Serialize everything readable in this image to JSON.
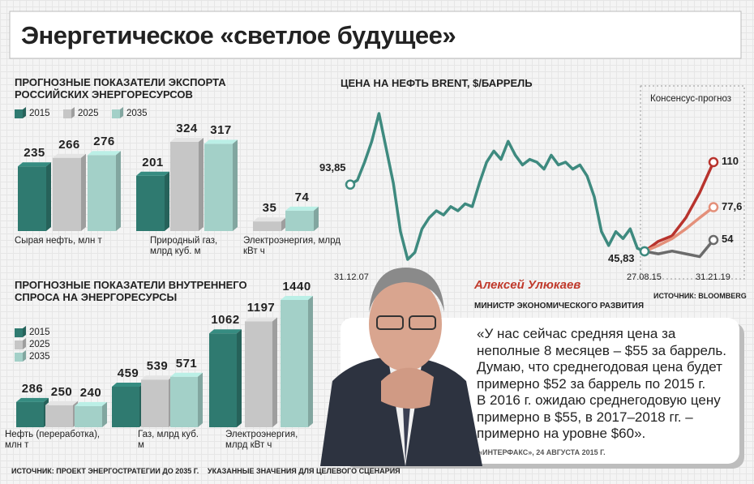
{
  "title": "Энергетическое «светлое будущее»",
  "chart_data": [
    {
      "type": "bar",
      "title": "ПРОГНОЗНЫЕ ПОКАЗАТЕЛИ ЭКСПОРТА РОССИЙСКИХ ЭНЕРГОРЕСУРСОВ",
      "categories": [
        "Сырая нефть, млн т",
        "Природный газ, млрд куб. м",
        "Электроэнергия, млрд кВт ч"
      ],
      "series": [
        {
          "name": "2015",
          "color": "#2f7a70",
          "values": [
            235,
            201,
            null
          ]
        },
        {
          "name": "2025",
          "color": "#c6c6c6",
          "values": [
            266,
            324,
            35
          ]
        },
        {
          "name": "2035",
          "color": "#a3d0c8",
          "values": [
            276,
            317,
            74
          ]
        }
      ],
      "legend": "horizontal"
    },
    {
      "type": "bar",
      "title": "ПРОГНОЗНЫЕ ПОКАЗАТЕЛИ ВНУТРЕННЕГО СПРОСА НА ЭНЕРГОРЕСУРСЫ",
      "categories": [
        "Нефть (переработка), млн т",
        "Газ, млрд куб. м",
        "Электроэнергия, млрд кВт ч"
      ],
      "series": [
        {
          "name": "2015",
          "color": "#2f7a70",
          "values": [
            286,
            459,
            1062
          ]
        },
        {
          "name": "2025",
          "color": "#c6c6c6",
          "values": [
            250,
            539,
            1197
          ]
        },
        {
          "name": "2035",
          "color": "#a3d0c8",
          "values": [
            240,
            571,
            1440
          ]
        }
      ],
      "legend": "vertical"
    },
    {
      "type": "line",
      "title": "ЦЕНА НА НЕФТЬ BRENT, $/БАРРЕЛЬ",
      "color": "#3e8a7f",
      "categories": [
        "31.12.07",
        null,
        null,
        null,
        null,
        null,
        null,
        null,
        null,
        null,
        null,
        null,
        null,
        null,
        null,
        null,
        null,
        null,
        null,
        null,
        null,
        null,
        null,
        null,
        null,
        null,
        null,
        null,
        null,
        null,
        null,
        null,
        null,
        null,
        null,
        null,
        null,
        null,
        null,
        null,
        null,
        null
      ],
      "values": [
        93.85,
        97,
        110,
        125,
        145,
        120,
        95,
        60,
        40,
        45,
        62,
        70,
        75,
        72,
        78,
        75,
        80,
        78,
        95,
        110,
        118,
        112,
        125,
        115,
        108,
        112,
        110,
        105,
        115,
        108,
        110,
        105,
        108,
        100,
        85,
        60,
        50,
        60,
        55,
        62,
        48,
        45.83
      ],
      "value_labels": [
        "93,85",
        null,
        null,
        null,
        null,
        null,
        null,
        null,
        null,
        null,
        null,
        null,
        null,
        null,
        null,
        null,
        null,
        null,
        null,
        null,
        null,
        null,
        null,
        null,
        null,
        null,
        null,
        null,
        null,
        null,
        null,
        null,
        null,
        null,
        null,
        null,
        null,
        null,
        null,
        null,
        null,
        "45,83"
      ],
      "source": "ИСТОЧНИК: BLOOMBERG"
    },
    {
      "type": "line",
      "title": "Консенсус-прогноз",
      "categories": [
        "27.08.15",
        null,
        null,
        null,
        null,
        "31.21.19"
      ],
      "series": [
        {
          "color": "#b8332d",
          "values": [
            45.83,
            53,
            57,
            70,
            88,
            110
          ]
        },
        {
          "color": "#e4907a",
          "values": [
            45.83,
            50,
            55,
            62,
            70,
            77.6
          ],
          "value_labels": [
            null,
            null,
            null,
            null,
            null,
            "77,6"
          ]
        },
        {
          "color": "#6b6b6b",
          "values": [
            45.83,
            44,
            46,
            44,
            42,
            54
          ]
        }
      ]
    }
  ],
  "person": {
    "name": "Алексей Улюкаев",
    "role": "МИНИСТР ЭКОНОМИЧЕСКОГО РАЗВИТИЯ"
  },
  "quote": {
    "lines": [
      "«У нас сейчас средняя цена за",
      "неполные 8 месяцев – $55 за баррель.",
      "Думаю, что среднегодовая цена будет",
      "примерно $52 за баррель по 2015 г.",
      "В 2016 г. ожидаю среднегодовую цену",
      "примерно в $55, в 2017–2018 гг. –",
      "примерно на уровне $60»."
    ],
    "attribution": "«ИНТЕРФАКС», 24 АВГУСТА 2015 Г."
  },
  "notes": [
    "ИСТОЧНИК: ПРОЕКТ ЭНЕРГОСТРАТЕГИИ ДО 2035 Г.",
    "УКАЗАННЫЕ ЗНАЧЕНИЯ ДЛЯ ЦЕЛЕВОГО СЦЕНАРИЯ"
  ]
}
